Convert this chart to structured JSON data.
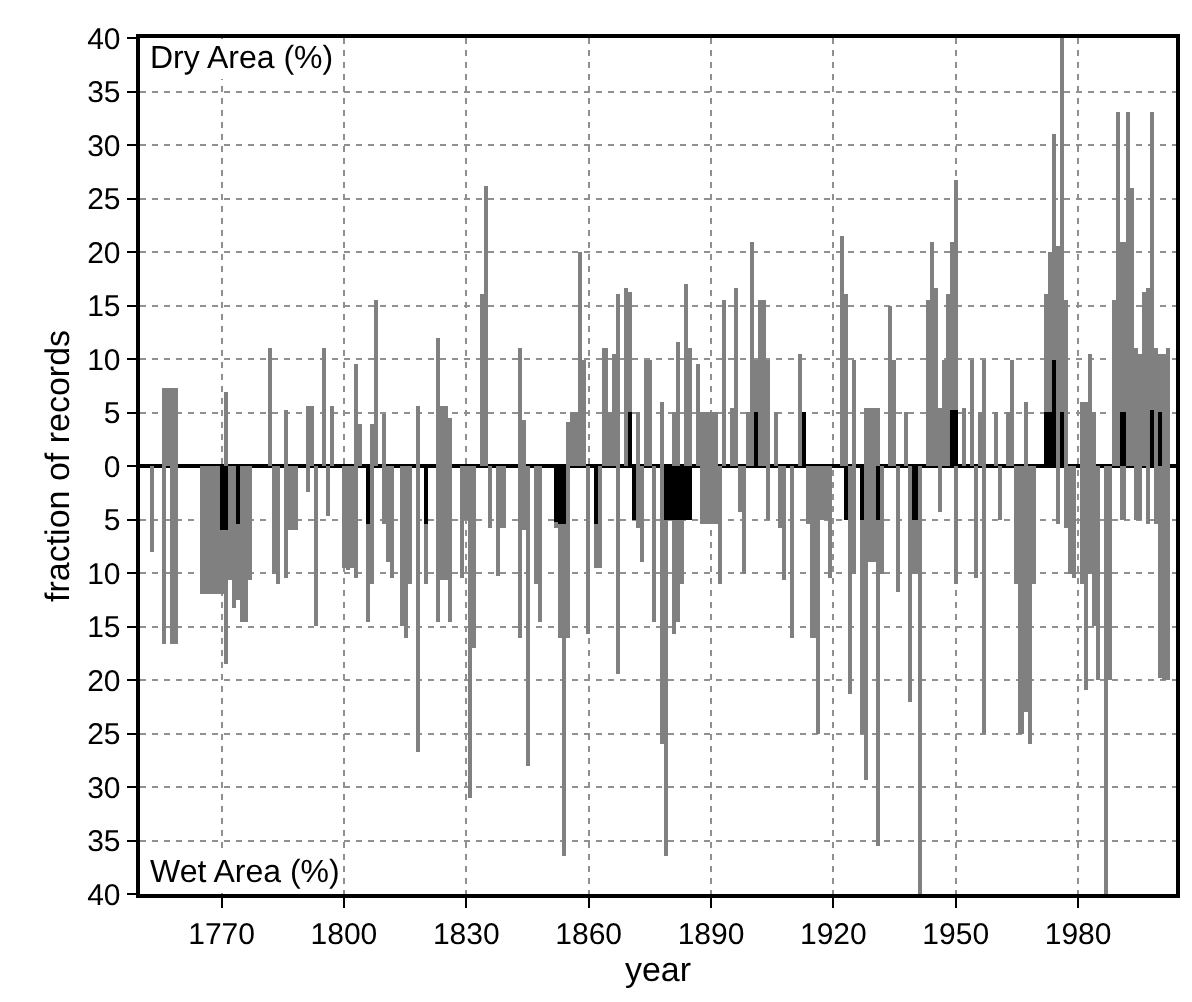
{
  "chart_data": {
    "type": "bar",
    "stacked": true,
    "xlabel": "year",
    "ylabel": "fraction of records",
    "annotations": [
      "Dry Area (%)",
      "Wet Area (%)"
    ],
    "xlim": [
      1750,
      2004
    ],
    "xticks": [
      1770,
      1800,
      1830,
      1860,
      1890,
      1920,
      1950,
      1980
    ],
    "ylim": [
      -40,
      40
    ],
    "yticks": [
      {
        "value": -40,
        "label": "40"
      },
      {
        "value": -35,
        "label": "35"
      },
      {
        "value": -30,
        "label": "30"
      },
      {
        "value": -25,
        "label": "25"
      },
      {
        "value": -20,
        "label": "20"
      },
      {
        "value": -15,
        "label": "15"
      },
      {
        "value": -10,
        "label": "10"
      },
      {
        "value": -5,
        "label": "5"
      },
      0,
      5,
      10,
      15,
      20,
      25,
      30,
      35,
      40
    ],
    "grid": true,
    "x": [
      1753,
      1756,
      1757,
      1758,
      1759,
      1765,
      1766,
      1767,
      1768,
      1769,
      1770,
      1771,
      1772,
      1773,
      1774,
      1775,
      1776,
      1777,
      1782,
      1783,
      1784,
      1786,
      1787,
      1788,
      1791,
      1792,
      1793,
      1795,
      1796,
      1797,
      1800,
      1801,
      1802,
      1803,
      1804,
      1806,
      1807,
      1808,
      1810,
      1811,
      1812,
      1814,
      1815,
      1816,
      1818,
      1820,
      1823,
      1824,
      1825,
      1826,
      1829,
      1830,
      1831,
      1832,
      1834,
      1835,
      1836,
      1838,
      1839,
      1843,
      1844,
      1845,
      1847,
      1848,
      1852,
      1853,
      1854,
      1855,
      1856,
      1857,
      1858,
      1859,
      1860,
      1862,
      1863,
      1864,
      1865,
      1866,
      1867,
      1869,
      1870,
      1871,
      1872,
      1873,
      1874,
      1875,
      1876,
      1878,
      1879,
      1880,
      1881,
      1882,
      1883,
      1884,
      1885,
      1887,
      1888,
      1889,
      1890,
      1891,
      1892,
      1893,
      1895,
      1896,
      1897,
      1898,
      1899,
      1900,
      1901,
      1902,
      1903,
      1904,
      1906,
      1907,
      1908,
      1910,
      1912,
      1913,
      1914,
      1915,
      1916,
      1917,
      1918,
      1919,
      1922,
      1923,
      1924,
      1925,
      1927,
      1928,
      1929,
      1930,
      1931,
      1932,
      1934,
      1935,
      1936,
      1938,
      1939,
      1940,
      1941,
      1943,
      1944,
      1945,
      1946,
      1947,
      1948,
      1949,
      1950,
      1952,
      1954,
      1955,
      1956,
      1957,
      1960,
      1961,
      1963,
      1964,
      1965,
      1966,
      1967,
      1968,
      1969,
      1972,
      1973,
      1974,
      1975,
      1976,
      1977,
      1978,
      1979,
      1981,
      1982,
      1983,
      1984,
      1985,
      1987,
      1988,
      1989,
      1990,
      1991,
      1992,
      1993,
      1994,
      1995,
      1996,
      1997,
      1998,
      1999,
      2000,
      2001,
      2002
    ],
    "series": [
      {
        "color": "#000000",
        "values": [
          null,
          null,
          null,
          null,
          null,
          null,
          null,
          null,
          null,
          null,
          null,
          null,
          null,
          null,
          null,
          null,
          null,
          null,
          null,
          null,
          null,
          null,
          null,
          null,
          null,
          null,
          null,
          null,
          null,
          null,
          null,
          null,
          null,
          null,
          null,
          null,
          null,
          null,
          null,
          null,
          null,
          null,
          null,
          null,
          null,
          null,
          null,
          null,
          null,
          null,
          null,
          null,
          null,
          null,
          null,
          null,
          null,
          null,
          null,
          null,
          null,
          null,
          null,
          null,
          null,
          null,
          null,
          null,
          null,
          null,
          null,
          null,
          null,
          null,
          null,
          null,
          null,
          null,
          null,
          null,
          5,
          null,
          null,
          null,
          null,
          null,
          null,
          null,
          null,
          null,
          null,
          null,
          null,
          null,
          null,
          null,
          null,
          null,
          null,
          null,
          null,
          null,
          null,
          null,
          null,
          null,
          null,
          null,
          5,
          null,
          null,
          null,
          null,
          null,
          null,
          null,
          null,
          5,
          null,
          null,
          null,
          null,
          null,
          null,
          null,
          null,
          null,
          null,
          null,
          null,
          null,
          null,
          null,
          null,
          null,
          null,
          null,
          null,
          null,
          null,
          null,
          null,
          null,
          null,
          null,
          null,
          null,
          5.3,
          5.3,
          null,
          null,
          null,
          null,
          null,
          null,
          null,
          null,
          null,
          null,
          null,
          null,
          null,
          null,
          5,
          5,
          10,
          null,
          5,
          null,
          null,
          null,
          null,
          null,
          null,
          null,
          null,
          null,
          null,
          null,
          null,
          5,
          null,
          null,
          null,
          null,
          null,
          null,
          5.3,
          null,
          5,
          null,
          null
        ]
      },
      {
        "color": "#808080",
        "values": [
          null,
          7.3,
          7.3,
          7.3,
          7.3,
          null,
          null,
          null,
          null,
          null,
          null,
          7,
          null,
          null,
          null,
          null,
          null,
          null,
          11,
          null,
          null,
          5.2,
          null,
          null,
          5.7,
          5.7,
          null,
          11,
          null,
          5.7,
          null,
          null,
          null,
          9.5,
          4,
          null,
          4,
          15.5,
          4.8,
          null,
          null,
          null,
          null,
          null,
          5.7,
          null,
          12,
          5.7,
          5.7,
          4.5,
          null,
          null,
          null,
          null,
          16,
          26.2,
          null,
          null,
          null,
          11,
          4.3,
          null,
          null,
          null,
          null,
          null,
          null,
          4.2,
          5.1,
          5.1,
          20,
          10,
          null,
          null,
          null,
          11,
          5,
          10.5,
          16,
          16.7,
          11.2,
          null,
          5,
          null,
          10,
          10,
          null,
          6,
          null,
          null,
          5,
          11.5,
          null,
          17,
          11,
          9.5,
          5,
          5,
          5,
          5,
          null,
          15.5,
          5.5,
          16.7,
          null,
          null,
          5,
          21,
          5,
          15.5,
          15.5,
          10,
          5,
          null,
          null,
          null,
          10.5,
          null,
          null,
          null,
          null,
          null,
          null,
          null,
          21.5,
          16,
          null,
          10,
          null,
          5.4,
          5.4,
          5.4,
          5.4,
          null,
          15,
          10,
          null,
          5,
          null,
          null,
          null,
          15.5,
          21,
          16.7,
          5.4,
          10,
          16,
          15.7,
          21.4,
          5.5,
          10,
          null,
          5,
          10,
          5,
          null,
          5,
          10,
          null,
          null,
          6,
          null,
          null,
          11,
          15,
          21,
          20.5,
          35,
          15.5,
          null,
          null,
          6,
          6,
          10.5,
          5,
          null,
          null,
          null,
          15.5,
          33,
          16,
          33,
          26,
          11,
          10.5,
          16.2,
          16.7,
          27.7,
          11,
          5.5,
          10.5,
          11
        ]
      },
      {
        "color": "#000000",
        "values": [
          null,
          null,
          null,
          null,
          null,
          null,
          null,
          null,
          null,
          null,
          -6,
          -6,
          null,
          null,
          -5.4,
          null,
          null,
          null,
          null,
          null,
          null,
          null,
          null,
          null,
          null,
          null,
          null,
          null,
          null,
          null,
          null,
          null,
          null,
          null,
          null,
          -5.4,
          null,
          null,
          null,
          null,
          null,
          null,
          null,
          null,
          null,
          -5.4,
          null,
          null,
          null,
          null,
          null,
          null,
          null,
          null,
          null,
          null,
          null,
          null,
          null,
          null,
          null,
          null,
          null,
          null,
          -5.4,
          -5.4,
          -5.4,
          null,
          null,
          null,
          null,
          null,
          null,
          -5.4,
          null,
          null,
          null,
          null,
          null,
          null,
          null,
          -5,
          null,
          null,
          null,
          null,
          null,
          null,
          -5,
          -5,
          -5,
          -5,
          -5,
          -5,
          -5,
          null,
          null,
          null,
          null,
          null,
          null,
          null,
          null,
          null,
          null,
          null,
          null,
          null,
          null,
          null,
          null,
          null,
          null,
          null,
          null,
          null,
          null,
          null,
          null,
          null,
          null,
          null,
          null,
          null,
          null,
          -5,
          null,
          null,
          -5,
          null,
          null,
          null,
          -5,
          null,
          null,
          null,
          null,
          null,
          null,
          -5,
          null,
          null,
          null,
          null,
          null,
          null,
          null,
          null,
          null,
          null,
          null,
          null,
          null,
          null,
          null,
          null,
          null,
          null,
          null,
          null,
          null,
          null,
          null,
          null,
          null,
          null,
          null,
          null,
          null,
          null,
          null,
          null,
          null,
          null,
          null,
          null,
          null,
          null,
          null,
          null,
          null,
          null,
          null,
          null,
          null,
          null,
          null,
          null,
          null,
          null,
          null,
          null
        ]
      },
      {
        "color": "#808080",
        "values": [
          -8,
          -16.7,
          null,
          -16.7,
          -16.7,
          -12,
          -12,
          -12,
          -12,
          -12,
          -6,
          -12.5,
          -10.7,
          -13.3,
          -7.1,
          -14.6,
          -14.6,
          -10.7,
          null,
          -10,
          -11,
          -10.5,
          -6,
          -6,
          -2.4,
          null,
          -15,
          null,
          -4.6,
          null,
          -9.5,
          -9.8,
          -9.5,
          -10.5,
          null,
          -9.2,
          -11,
          null,
          -5.5,
          -9,
          -10.5,
          -15,
          -16,
          -11,
          -26.7,
          -5.6,
          -14.6,
          -10.7,
          -10.7,
          -14.6,
          -10.5,
          -5,
          -31,
          -17,
          null,
          null,
          -5.7,
          -10.2,
          -5.7,
          -16,
          -6,
          -28,
          -11,
          -14.6,
          -0.3,
          -10.6,
          -31,
          -16,
          null,
          null,
          null,
          null,
          -15.7,
          -4.1,
          -9.5,
          null,
          null,
          null,
          -19.5,
          null,
          null,
          null,
          -5.7,
          -9,
          null,
          null,
          -14.6,
          -26,
          -31.4,
          null,
          -10.7,
          -9.6,
          -6,
          null,
          null,
          null,
          -5.5,
          -5.5,
          -5.5,
          -5.5,
          -11,
          null,
          null,
          null,
          -4.3,
          -10,
          null,
          null,
          null,
          null,
          null,
          -5,
          null,
          -5.7,
          -10.7,
          -16,
          null,
          null,
          -5.5,
          -16,
          -25,
          -5,
          -5,
          -10.5,
          null,
          null,
          -21.3,
          -10,
          -20,
          -29.3,
          -9,
          -9,
          -30.5,
          -10,
          null,
          null,
          -11.7,
          null,
          -22,
          -5,
          -40,
          null,
          null,
          null,
          -4.3,
          null,
          null,
          null,
          -11,
          null,
          null,
          -10.5,
          null,
          -25,
          null,
          -5,
          null,
          null,
          -11,
          -25,
          -23,
          -26,
          -11,
          null,
          null,
          null,
          -5.5,
          null,
          -5.7,
          -10,
          -10.5,
          -11,
          -21,
          -10,
          -15,
          -20,
          -40,
          -20,
          null,
          null,
          -5,
          null,
          null,
          -5,
          -5,
          null,
          -5.4,
          null,
          -5.4,
          -19.8,
          -20,
          -20
        ]
      }
    ]
  }
}
